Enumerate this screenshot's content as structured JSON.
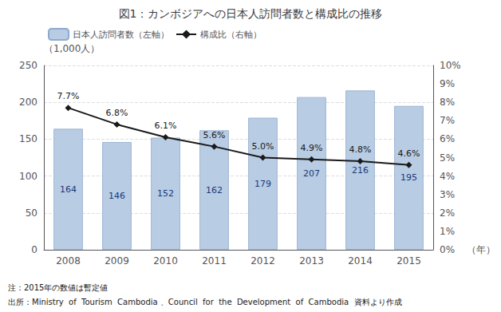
{
  "chart_data": {
    "type": "bar",
    "title": "図1：カンボジアへの日本人訪問者数と構成比の推移",
    "categories": [
      "2008",
      "2009",
      "2010",
      "2011",
      "2012",
      "2013",
      "2014",
      "2015"
    ],
    "series": [
      {
        "name": "日本人訪問者数（左軸）",
        "type": "bar",
        "color": "#b8cce4",
        "values": [
          164,
          146,
          152,
          162,
          179,
          207,
          216,
          195
        ],
        "data_labels": true
      },
      {
        "name": "構成比（右軸）",
        "type": "line",
        "axis": "y2",
        "color": "#1a1a1a",
        "marker": "diamond",
        "values": [
          7.7,
          6.8,
          6.1,
          5.6,
          5.0,
          4.9,
          4.8,
          4.6
        ],
        "value_labels": [
          "7.7%",
          "6.8%",
          "6.1%",
          "5.6%",
          "5.0%",
          "4.9%",
          "4.8%",
          "4.6%"
        ],
        "data_labels": true
      }
    ],
    "ylabel": "（1,000人）",
    "xlabel": "（年）",
    "ylim": [
      0,
      250
    ],
    "yticks": [
      0,
      50,
      100,
      150,
      200,
      250
    ],
    "y2lim": [
      0,
      10
    ],
    "y2ticks": [
      {
        "value": 0,
        "label": "0%"
      },
      {
        "value": 1,
        "label": "1%"
      },
      {
        "value": 2,
        "label": "2%"
      },
      {
        "value": 3,
        "label": "3%"
      },
      {
        "value": 4,
        "label": "4%"
      },
      {
        "value": 5,
        "label": "5%"
      },
      {
        "value": 6,
        "label": "6%"
      },
      {
        "value": 7,
        "label": "7%"
      },
      {
        "value": 8,
        "label": "8%"
      },
      {
        "value": 9,
        "label": "9%"
      },
      {
        "value": 10,
        "label": "10%"
      }
    ],
    "grid": true,
    "legend": "upper left",
    "annotations": [
      "注：2015年の数値は暫定値",
      "出所：Ministry  of  Tourism  Cambodia 、Council  for  the  Development  of  Cambodia  資料より作成"
    ]
  }
}
